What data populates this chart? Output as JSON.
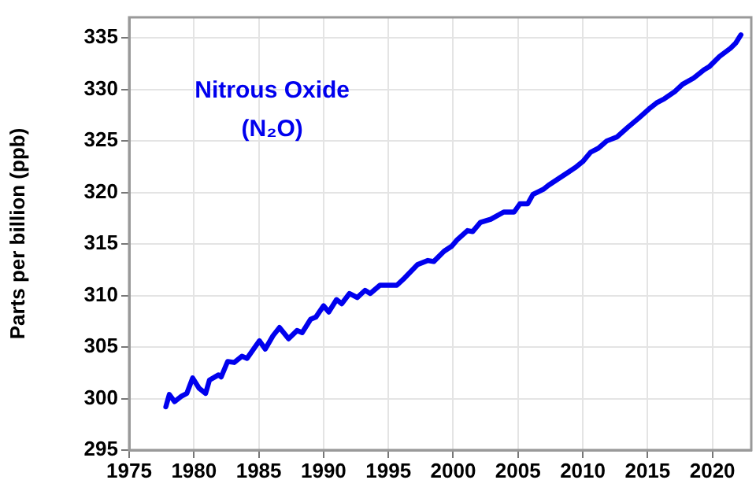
{
  "chart_data": {
    "type": "line",
    "title": "Nitrous Oxide",
    "subtitle": "(N₂O)",
    "ylabel": "Parts per billion (ppb)",
    "xlim": [
      1975,
      2023
    ],
    "xticks": [
      1975,
      1980,
      1985,
      1990,
      1995,
      2000,
      2005,
      2010,
      2015,
      2020
    ],
    "ylim": [
      295,
      337
    ],
    "yticks": [
      295,
      300,
      305,
      310,
      315,
      320,
      325,
      330,
      335
    ],
    "grid": true,
    "legend": false,
    "marker": "none",
    "line_style": "solid",
    "x": [
      1977.83,
      1978.1,
      1978.5,
      1979.0,
      1979.45,
      1979.9,
      1980.4,
      1980.9,
      1981.2,
      1981.9,
      1982.1,
      1982.6,
      1983.1,
      1983.7,
      1984.1,
      1984.6,
      1985.05,
      1985.5,
      1986.1,
      1986.6,
      1987.3,
      1987.95,
      1988.35,
      1989.0,
      1989.4,
      1990.0,
      1990.4,
      1991.0,
      1991.4,
      1992.0,
      1992.6,
      1993.2,
      1993.6,
      1994.35,
      1995.65,
      1996.25,
      1997.25,
      1998.05,
      1998.5,
      1999.3,
      1999.9,
      2000.3,
      2001.1,
      2001.5,
      2002.1,
      2002.9,
      2003.9,
      2004.7,
      2005.15,
      2005.75,
      2006.15,
      2006.95,
      2007.35,
      2008.2,
      2008.8,
      2009.4,
      2010.0,
      2010.6,
      2011.2,
      2011.85,
      2012.65,
      2013.45,
      2014.3,
      2015.1,
      2015.7,
      2016.3,
      2017.1,
      2017.7,
      2018.55,
      2019.35,
      2019.75,
      2020.55,
      2021.4,
      2021.8,
      2022.2
    ],
    "series": [
      {
        "color": "#0000ee",
        "values": [
          299.2,
          300.4,
          299.7,
          300.2,
          300.5,
          302.0,
          301.0,
          300.5,
          301.8,
          302.3,
          302.1,
          303.6,
          303.5,
          304.1,
          303.9,
          304.8,
          305.6,
          304.8,
          306.1,
          306.9,
          305.8,
          306.6,
          306.4,
          307.7,
          307.9,
          309.0,
          308.4,
          309.6,
          309.2,
          310.2,
          309.8,
          310.5,
          310.2,
          311.0,
          311.0,
          311.7,
          313.0,
          313.4,
          313.3,
          314.3,
          314.8,
          315.4,
          316.3,
          316.2,
          317.1,
          317.4,
          318.1,
          318.1,
          318.9,
          318.9,
          319.8,
          320.3,
          320.7,
          321.4,
          321.9,
          322.4,
          323.0,
          323.9,
          324.3,
          325.0,
          325.4,
          326.3,
          327.2,
          328.1,
          328.7,
          329.1,
          329.8,
          330.5,
          331.1,
          331.9,
          332.2,
          333.2,
          334.0,
          334.5,
          335.3
        ]
      }
    ]
  }
}
